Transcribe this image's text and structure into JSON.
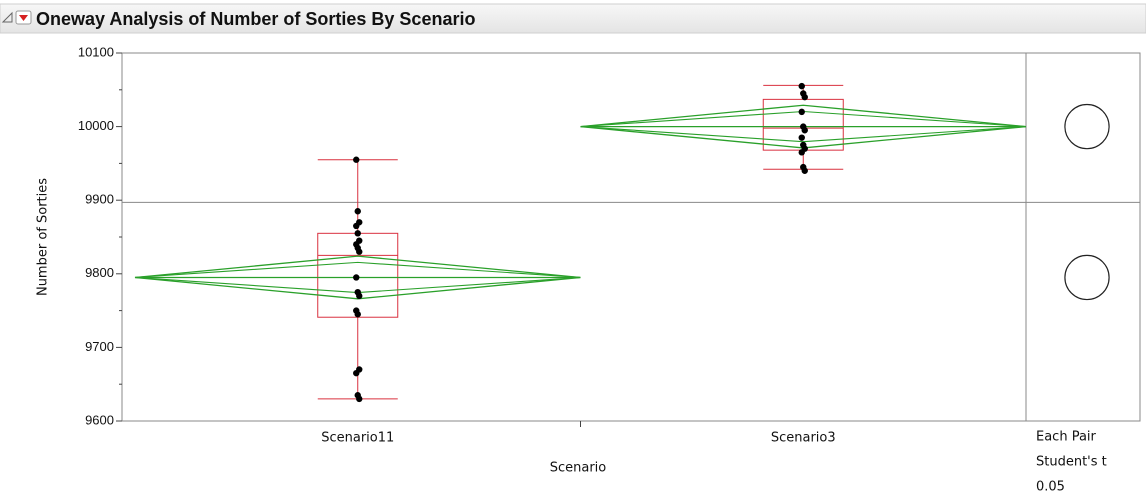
{
  "chart_data": {
    "type": "oneway",
    "title": "Oneway Analysis of Number of Sorties By Scenario",
    "x_label": "Scenario",
    "y_label": "Number of Sorties",
    "categories": [
      "Scenario11",
      "Scenario3"
    ],
    "ylim": [
      9600,
      10100
    ],
    "yticks": [
      9600,
      9700,
      9800,
      9900,
      10000,
      10100
    ],
    "yminorticks": [
      9650,
      9750,
      9850,
      9950,
      10050
    ],
    "grand_mean": 9897,
    "points": [
      [
        9955,
        9885,
        9870,
        9865,
        9855,
        9845,
        9840,
        9835,
        9830,
        9795,
        9775,
        9770,
        9750,
        9745,
        9670,
        9665,
        9635,
        9630
      ],
      [
        10055,
        10045,
        10040,
        10020,
        10000,
        9995,
        9985,
        9975,
        9970,
        9965,
        9945,
        9940
      ]
    ],
    "quantiles": [
      {
        "min": 9630,
        "q1": 9741,
        "median": 9825,
        "q3": 9855,
        "max": 9955
      },
      {
        "min": 9942,
        "q1": 9968,
        "median": 9998,
        "q3": 10037,
        "max": 10056
      }
    ],
    "means": [
      9795,
      10000
    ],
    "ci": [
      [
        9766,
        9824
      ],
      [
        9971,
        10029
      ]
    ],
    "comparison": {
      "label": [
        "Each Pair",
        "Student's t"
      ],
      "alpha": 0.05,
      "radius": [
        30,
        30
      ]
    },
    "box_color": "#d9303f",
    "diamond_color": "#2aa02a",
    "point_color": "#000000"
  }
}
